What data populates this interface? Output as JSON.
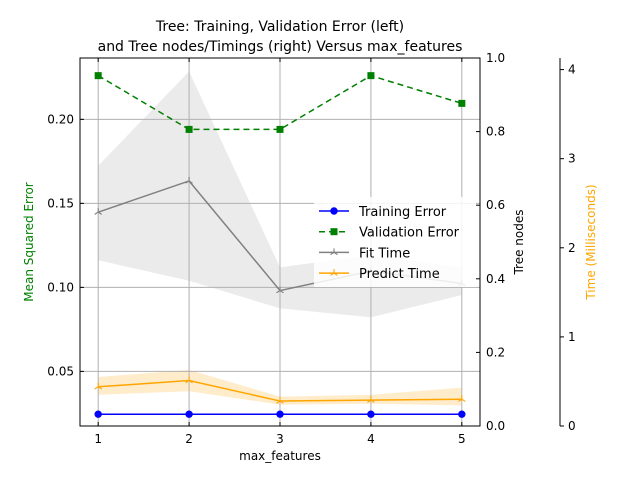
{
  "chart_data": {
    "type": "line",
    "title_line1": "Tree: Training, Validation Error (left)",
    "title_line2": "and Tree nodes/Timings (right) Versus max_features",
    "xlabel": "max_features",
    "x": [
      1,
      2,
      3,
      4,
      5
    ],
    "x_ticks": [
      "1",
      "2",
      "3",
      "4",
      "5"
    ],
    "y_left": {
      "label": "Mean Squared Error",
      "color": "#008000",
      "ylim": [
        0.0175,
        0.2365
      ],
      "ticks": [
        0.05,
        0.1,
        0.15,
        0.2
      ],
      "tick_labels": [
        "0.05",
        "0.10",
        "0.15",
        "0.20"
      ]
    },
    "y_right_nodes": {
      "label": "Tree nodes",
      "color": "#000000",
      "ylim": [
        0.0,
        1.0
      ],
      "ticks": [
        0.0,
        0.2,
        0.4,
        0.6,
        0.8,
        1.0
      ],
      "tick_labels": [
        "0.0",
        "0.2",
        "0.4",
        "0.6",
        "0.8",
        "1.0"
      ]
    },
    "y_right_time": {
      "label": "Time (Milliseconds)",
      "color": "#FFA500",
      "ylim": [
        0,
        4.13
      ],
      "ticks": [
        0,
        1,
        2,
        3,
        4
      ],
      "tick_labels": [
        "0",
        "1",
        "2",
        "3",
        "4"
      ]
    },
    "grid": true,
    "legend_position": "center-right",
    "series": [
      {
        "name": "Training Error",
        "axis": "left",
        "color": "#0000FF",
        "marker": "circle",
        "dashed": false,
        "values": [
          0.0245,
          0.0245,
          0.0245,
          0.0245,
          0.0245
        ]
      },
      {
        "name": "Validation Error",
        "axis": "left",
        "color": "#008000",
        "marker": "square",
        "dashed": true,
        "values": [
          0.226,
          0.194,
          0.194,
          0.226,
          0.2095
        ]
      },
      {
        "name": "Fit Time",
        "axis": "time",
        "color": "#808080",
        "marker": "tri",
        "dashed": false,
        "values": [
          2.4,
          2.75,
          1.52,
          1.74,
          1.6
        ],
        "band_lower": [
          1.86,
          1.63,
          1.32,
          1.22,
          1.47
        ],
        "band_upper": [
          2.92,
          3.98,
          1.78,
          1.92,
          1.78
        ],
        "band_color": "#d3d3d3"
      },
      {
        "name": "Predict Time",
        "axis": "time",
        "color": "#FFA500",
        "marker": "tri",
        "dashed": false,
        "values": [
          0.44,
          0.51,
          0.28,
          0.29,
          0.3
        ],
        "band_lower": [
          0.35,
          0.39,
          0.24,
          0.25,
          0.23
        ],
        "band_upper": [
          0.55,
          0.63,
          0.33,
          0.35,
          0.43
        ],
        "band_color": "#ffe4b5"
      }
    ]
  }
}
